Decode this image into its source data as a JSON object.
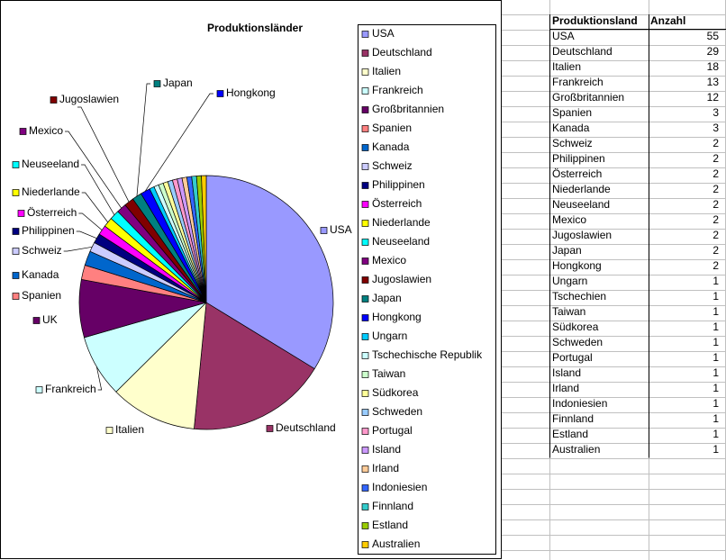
{
  "chart_data": {
    "type": "pie",
    "title": "Produktionsländer",
    "categories": [
      "USA",
      "Deutschland",
      "Italien",
      "Frankreich",
      "Großbritannien",
      "Spanien",
      "Kanada",
      "Schweiz",
      "Philippinen",
      "Österreich",
      "Niederlande",
      "Neuseeland",
      "Mexico",
      "Jugoslawien",
      "Japan",
      "Hongkong",
      "Ungarn",
      "Tschechische Republik",
      "Taiwan",
      "Südkorea",
      "Schweden",
      "Portugal",
      "Island",
      "Irland",
      "Indoniesien",
      "Finnland",
      "Estland",
      "Australien"
    ],
    "values": [
      55,
      29,
      18,
      13,
      12,
      3,
      3,
      2,
      2,
      2,
      2,
      2,
      2,
      2,
      2,
      2,
      1,
      1,
      1,
      1,
      1,
      1,
      1,
      1,
      1,
      1,
      1,
      1
    ],
    "slice_labels": [
      "USA",
      "Deutschland",
      "Italien",
      "Frankreich",
      "UK",
      "Spanien",
      "Kanada",
      "Schweiz",
      "Philippinen",
      "Österreich",
      "Niederlande",
      "Neuseeland",
      "Mexico",
      "Jugoslawien",
      "Japan",
      "Hongkong",
      null,
      null,
      null,
      null,
      null,
      null,
      null,
      null,
      null,
      null,
      null,
      null
    ],
    "colors": [
      "#9999FF",
      "#993366",
      "#FFFFCC",
      "#CCFFFF",
      "#660066",
      "#FF8080",
      "#0066CC",
      "#CCCCFF",
      "#000080",
      "#FF00FF",
      "#FFFF00",
      "#00FFFF",
      "#800080",
      "#800000",
      "#008080",
      "#0000FF",
      "#00CCFF",
      "#CCFFFF",
      "#CCFFCC",
      "#FFFF99",
      "#99CCFF",
      "#FF99CC",
      "#CC99FF",
      "#FFCC99",
      "#3366FF",
      "#33CCCC",
      "#99CC00",
      "#FFCC00"
    ],
    "legend": "right"
  },
  "table": {
    "header": [
      "Produktionsland",
      "Anzahl"
    ],
    "rows": [
      [
        "USA",
        "55"
      ],
      [
        "Deutschland",
        "29"
      ],
      [
        "Italien",
        "18"
      ],
      [
        "Frankreich",
        "13"
      ],
      [
        "Großbritannien",
        "12"
      ],
      [
        "Spanien",
        "3"
      ],
      [
        "Kanada",
        "3"
      ],
      [
        "Schweiz",
        "2"
      ],
      [
        "Philippinen",
        "2"
      ],
      [
        "Österreich",
        "2"
      ],
      [
        "Niederlande",
        "2"
      ],
      [
        "Neuseeland",
        "2"
      ],
      [
        "Mexico",
        "2"
      ],
      [
        "Jugoslawien",
        "2"
      ],
      [
        "Japan",
        "2"
      ],
      [
        "Hongkong",
        "2"
      ],
      [
        "Ungarn",
        "1"
      ],
      [
        "Tschechien",
        "1"
      ],
      [
        "Taiwan",
        "1"
      ],
      [
        "Südkorea",
        "1"
      ],
      [
        "Schweden",
        "1"
      ],
      [
        "Portugal",
        "1"
      ],
      [
        "Island",
        "1"
      ],
      [
        "Irland",
        "1"
      ],
      [
        "Indoniesien",
        "1"
      ],
      [
        "Finnland",
        "1"
      ],
      [
        "Estland",
        "1"
      ],
      [
        "Australien",
        "1"
      ]
    ]
  }
}
